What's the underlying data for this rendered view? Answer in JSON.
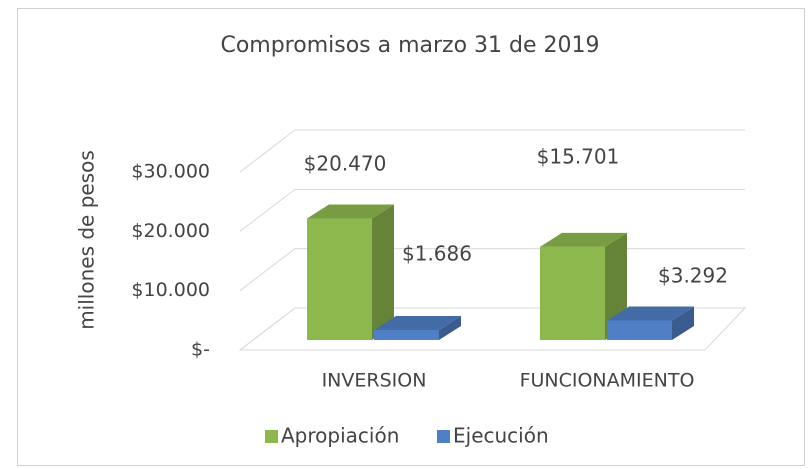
{
  "chart_data": {
    "type": "bar3d",
    "title": "Compromisos a marzo 31 de 2019",
    "y_label": "millones de pesos",
    "categories": [
      "INVERSION",
      "FUNCIONAMIENTO"
    ],
    "series": [
      {
        "name": "Apropiación",
        "color": "#8cb84e",
        "values": [
          20470,
          15701
        ],
        "value_labels": [
          "$20.470",
          "$15.701"
        ]
      },
      {
        "name": "Ejecución",
        "color": "#4f7fc4",
        "values": [
          1686,
          3292
        ],
        "value_labels": [
          "$1.686",
          "$3.292"
        ]
      }
    ],
    "ylim": [
      0,
      30000
    ],
    "yticks": [
      {
        "value": 0,
        "label": "$-"
      },
      {
        "value": 10000,
        "label": "$10.000"
      },
      {
        "value": 20000,
        "label": "$20.000"
      },
      {
        "value": 30000,
        "label": "$30.000"
      }
    ],
    "grid": true,
    "legend": "bottom"
  }
}
